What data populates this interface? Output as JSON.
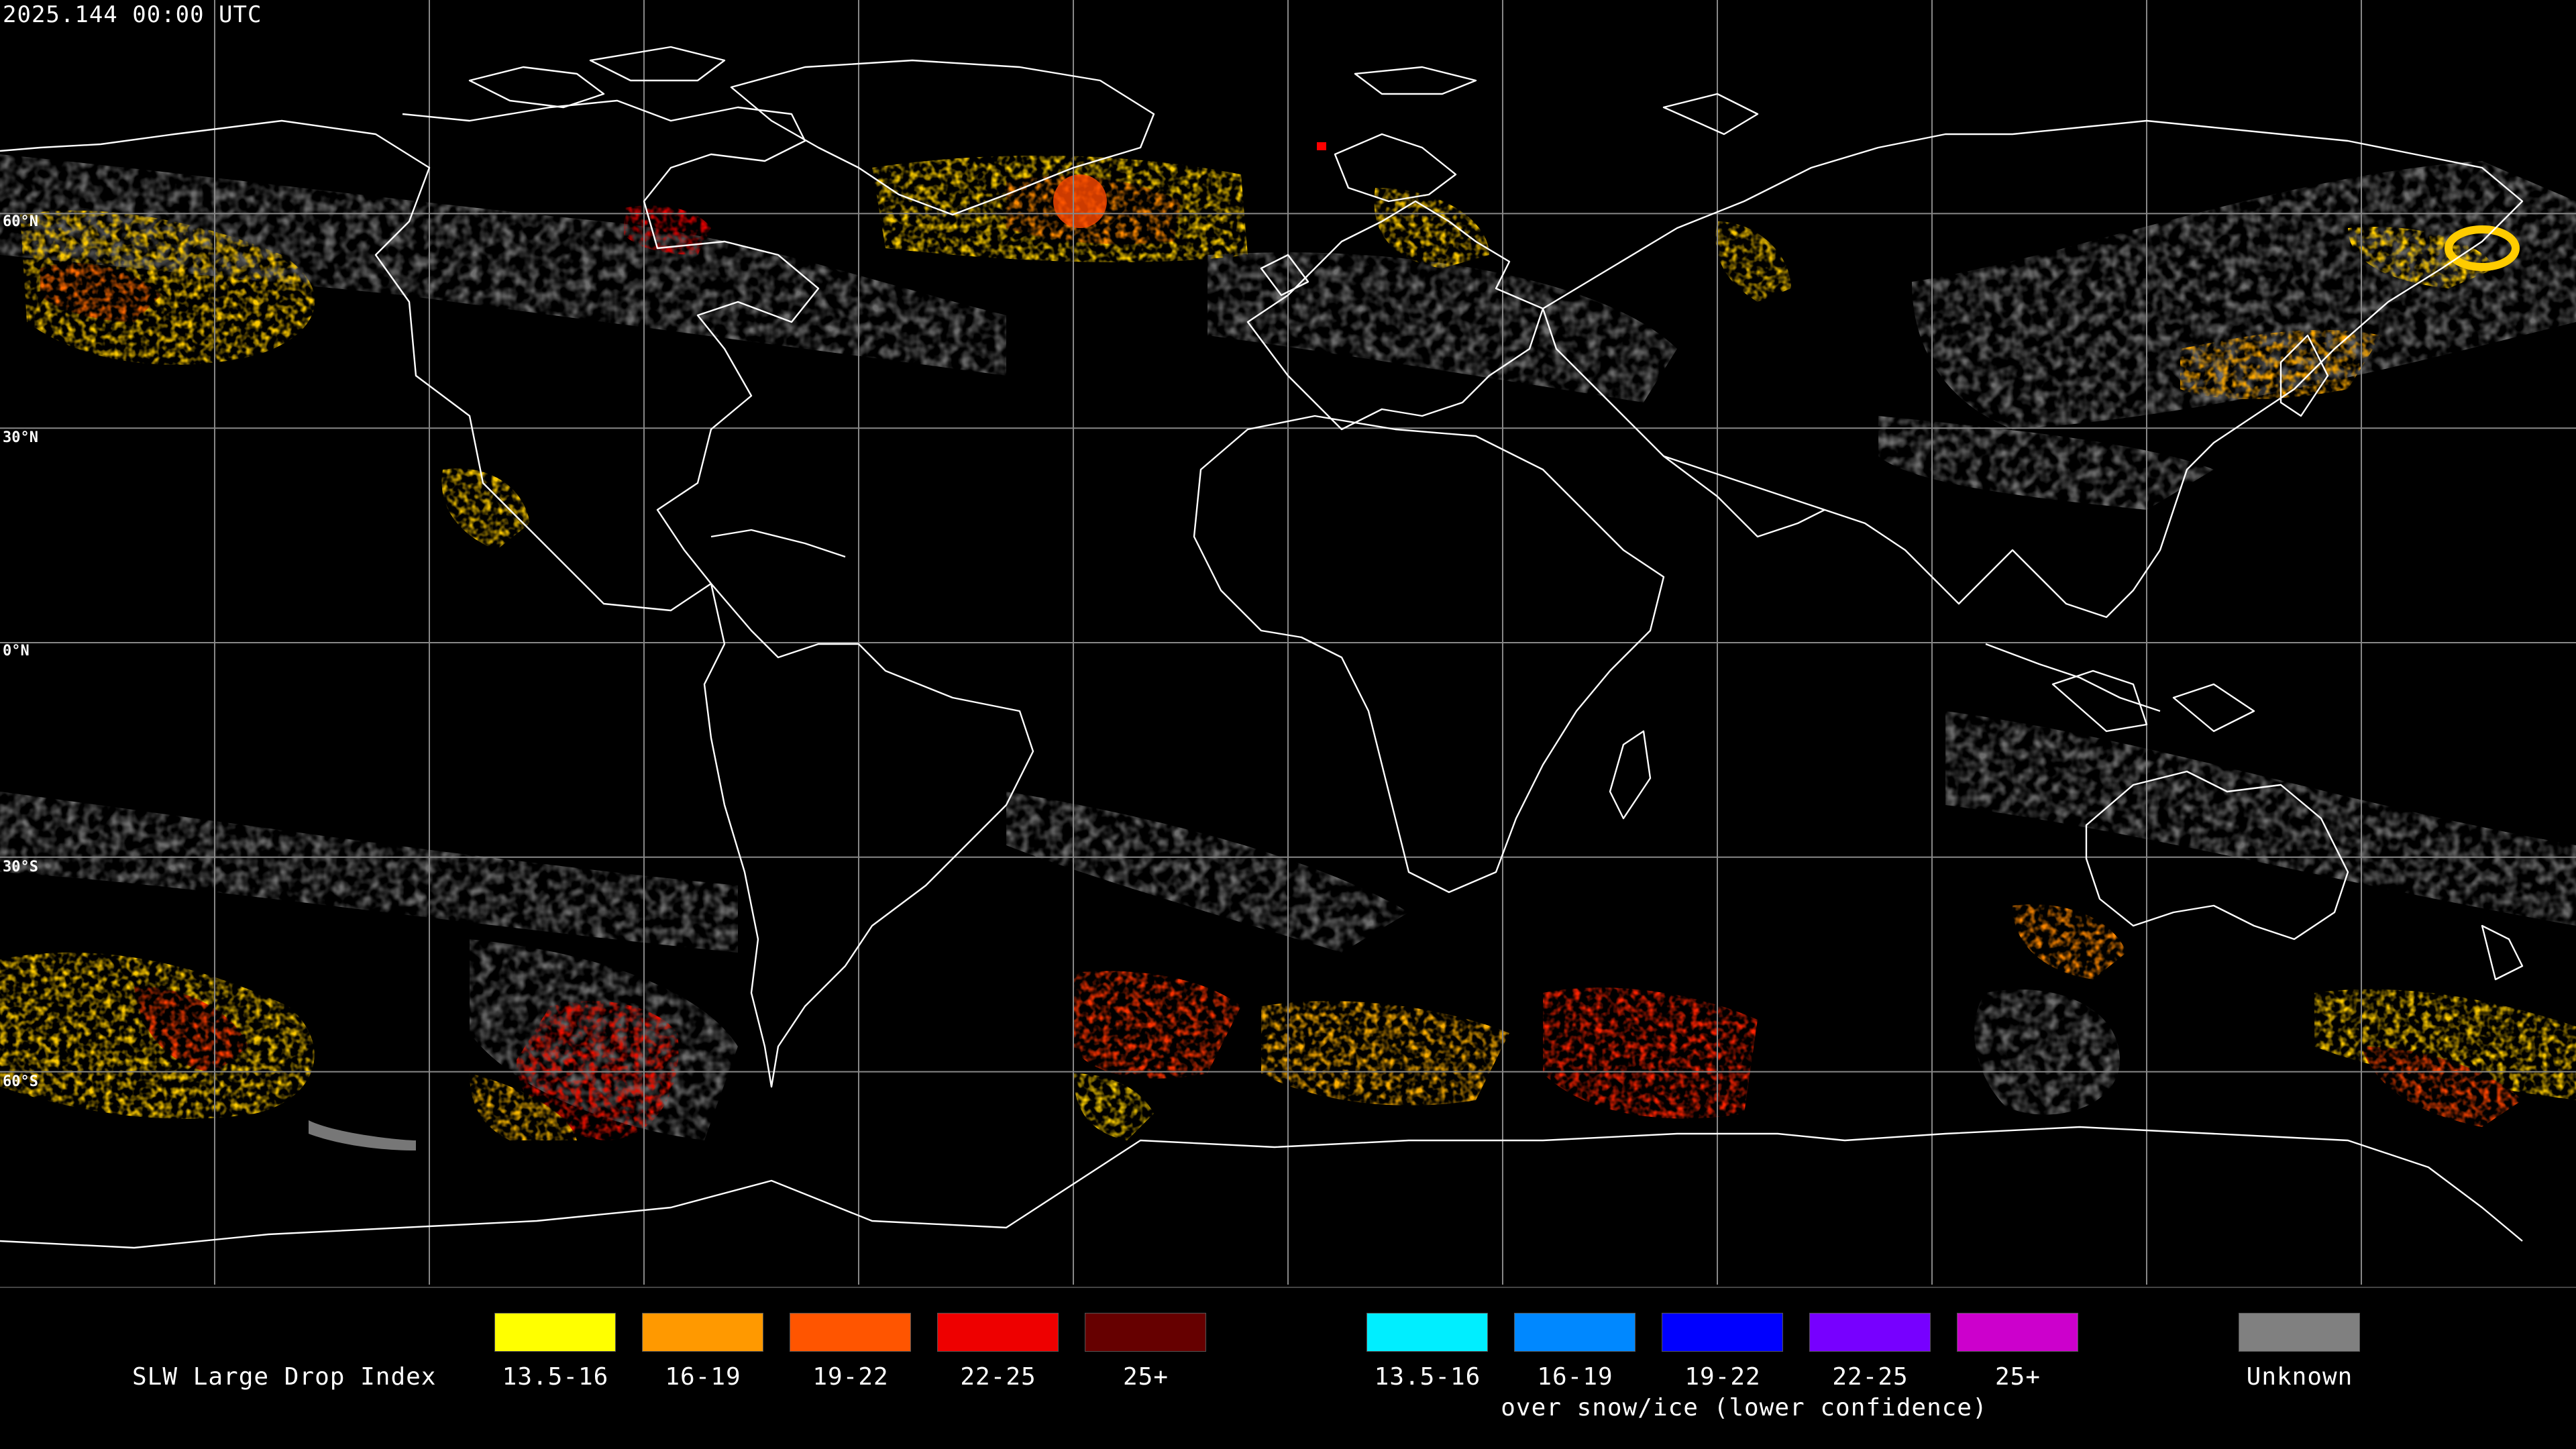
{
  "header": {
    "timestamp": "2025.144 00:00 UTC"
  },
  "lat_labels": [
    "60°N",
    "30°N",
    "0°N",
    "30°S",
    "60°S"
  ],
  "legend": {
    "title": "SLW Large Drop Index",
    "groups": [
      {
        "name": "standard",
        "items": [
          {
            "label": "13.5-16",
            "color": "#ffff00"
          },
          {
            "label": "16-19",
            "color": "#ff9900"
          },
          {
            "label": "19-22",
            "color": "#ff5500"
          },
          {
            "label": "22-25",
            "color": "#ee0000"
          },
          {
            "label": "25+",
            "color": "#660000"
          }
        ]
      },
      {
        "name": "snow_ice",
        "note": "over snow/ice (lower confidence)",
        "items": [
          {
            "label": "13.5-16",
            "color": "#00eeff"
          },
          {
            "label": "16-19",
            "color": "#0088ff"
          },
          {
            "label": "19-22",
            "color": "#0000ff"
          },
          {
            "label": "22-25",
            "color": "#7700ff"
          },
          {
            "label": "25+",
            "color": "#cc00cc"
          }
        ]
      }
    ],
    "unknown": {
      "label": "Unknown",
      "color": "#808080"
    }
  },
  "map": {
    "background_color": "#000000",
    "grid_color": "#888888",
    "coastline_color": "#ffffff",
    "projection": "equirectangular"
  }
}
